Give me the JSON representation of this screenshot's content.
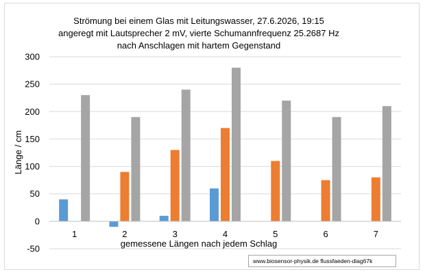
{
  "chart_data": {
    "type": "bar",
    "title_lines": [
      "Strömung bei einem Glas mit  Leitungswasser, 27.6.2026, 19:15",
      "angeregt mit Lautsprecher 2 mV, vierte Schumannfrequenz 25.2687 Hz",
      "nach Anschlagen mit hartem Gegenstand"
    ],
    "xlabel": "gemessene Längen nach jedem Schlag",
    "ylabel": "Länge / cm",
    "ylim": [
      -50,
      300
    ],
    "yticks": [
      -50,
      0,
      50,
      100,
      150,
      200,
      250,
      300
    ],
    "ytick_labels": [
      "-50",
      "0",
      "50",
      "100",
      "150",
      "200",
      "250",
      "300"
    ],
    "grid": true,
    "legend": "none",
    "categories": [
      "1",
      "2",
      "3",
      "4",
      "5",
      "6",
      "7"
    ],
    "series": [
      {
        "color": "#5b9bd5",
        "values": [
          40,
          -10,
          10,
          60,
          0,
          0,
          0
        ]
      },
      {
        "color": "#ed7d31",
        "values": [
          0,
          90,
          130,
          170,
          110,
          75,
          80
        ]
      },
      {
        "color": "#a5a5a5",
        "values": [
          230,
          190,
          240,
          280,
          220,
          190,
          210
        ]
      }
    ]
  },
  "source_note": "www.biosensor-physik.de  flussfaeden-diag67k"
}
